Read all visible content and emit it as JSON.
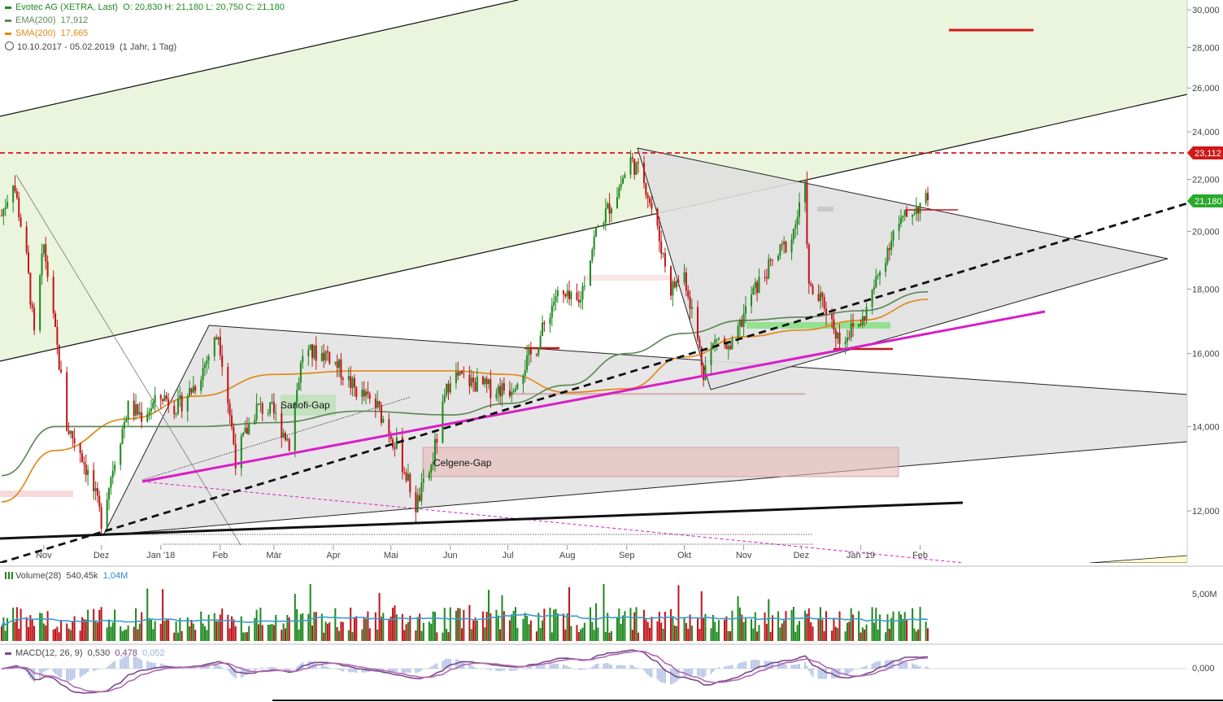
{
  "header": {
    "title": "Evotec AG (XETRA, Last)",
    "ohlc": "O: 20,830  H: 21,180  L: 20,750  C: 21,180",
    "ema_label": "EMA(200)",
    "ema_value": "17,912",
    "sma_label": "SMA(200)",
    "sma_value": "17,665",
    "range": "10.10.2017 - 05.02.2019",
    "range_detail": "(1 Jahr, 1 Tag)"
  },
  "colors": {
    "up": "#1f8a1f",
    "down": "#c0161b",
    "ema": "#5e8a5a",
    "sma": "#e08a1a",
    "magenta": "#d81ec8",
    "red_line": "#d01818",
    "channel_fill": "#ebf4dd",
    "triangle_fill": "#e0e0e0",
    "volume_avg": "#3c9bd0",
    "macd": "#7a4a8c"
  },
  "annotations": {
    "sanofi_gap": "Sanofi-Gap",
    "celgene_gap": "Celgene-Gap"
  },
  "price_tags": {
    "resistance": "23,112",
    "last": "21,180"
  },
  "volume_panel": {
    "label": "Volume(28)",
    "value1": "540,45k",
    "value2": "1,04M",
    "axis_label": "5,00M"
  },
  "macd_panel": {
    "label": "MACD(12, 26, 9)",
    "v1": "0,530",
    "v2": "0,478",
    "v3": "0,052",
    "axis_label": "0,000"
  },
  "chart_data": {
    "type": "candlestick",
    "y_axis": {
      "labels": [
        "30,000",
        "28,000",
        "26,000",
        "24,000",
        "22,000",
        "20,000",
        "18,000",
        "16,000",
        "14,000",
        "12,000"
      ]
    },
    "x_axis": {
      "labels": [
        "Nov",
        "Dez",
        "Jan '18",
        "Feb",
        "Mär",
        "Apr",
        "Mai",
        "Jun",
        "Jul",
        "Aug",
        "Sep",
        "Okt",
        "Nov",
        "Dez",
        "Jan '19",
        "Feb"
      ]
    },
    "last_close": 21.18,
    "resistance_level": 23.112,
    "anchor_closes": [
      [
        "Oct 10 2017",
        20.6
      ],
      [
        "Oct 16 2017",
        22.0
      ],
      [
        "Oct 23 2017",
        19.0
      ],
      [
        "Oct 27 2017",
        16.5
      ],
      [
        "Nov 1 2017",
        19.5
      ],
      [
        "Nov 6 2017",
        17.0
      ],
      [
        "Nov 13 2017",
        14.0
      ],
      [
        "Nov 20 2017",
        13.4
      ],
      [
        "Nov 28 2017",
        12.3
      ],
      [
        "Dec 1 2017",
        11.8
      ],
      [
        "Dec 8 2017",
        13.2
      ],
      [
        "Dec 15 2017",
        14.5
      ],
      [
        "Dec 22 2017",
        14.3
      ],
      [
        "Jan 2 2018",
        14.8
      ],
      [
        "Jan 10 2018",
        14.5
      ],
      [
        "Jan 20 2018",
        15.2
      ],
      [
        "Jan 31 2018",
        16.6
      ],
      [
        "Feb 9 2018",
        13.2
      ],
      [
        "Feb 20 2018",
        14.5
      ],
      [
        "Feb 28 2018",
        14.4
      ],
      [
        "Mar 9 2018",
        13.6
      ],
      [
        "Mar 16 2018",
        16.0
      ],
      [
        "Mar 29 2018",
        16.0
      ],
      [
        "Apr 12 2018",
        15.0
      ],
      [
        "Apr 24 2018",
        14.5
      ],
      [
        "May 4 2018",
        13.5
      ],
      [
        "May 14 2018",
        12.1
      ],
      [
        "May 22 2018",
        13.0
      ],
      [
        "Jun 1 2018",
        15.4
      ],
      [
        "Jun 11 2018",
        15.2
      ],
      [
        "Jun 22 2018",
        15.0
      ],
      [
        "Jul 2 2018",
        15.0
      ],
      [
        "Jul 16 2018",
        16.2
      ],
      [
        "Jul 26 2018",
        17.8
      ],
      [
        "Aug 7 2018",
        17.5
      ],
      [
        "Aug 16 2018",
        20.0
      ],
      [
        "Aug 27 2018",
        21.5
      ],
      [
        "Sep 3 2018",
        22.8
      ],
      [
        "Sep 10 2018",
        22.0
      ],
      [
        "Sep 17 2018",
        20.0
      ],
      [
        "Sep 24 2018",
        18.0
      ],
      [
        "Oct 1 2018",
        18.5
      ],
      [
        "Oct 11 2018",
        15.5
      ],
      [
        "Oct 18 2018",
        16.5
      ],
      [
        "Oct 25 2018",
        16.0
      ],
      [
        "Nov 5 2018",
        17.8
      ],
      [
        "Nov 15 2018",
        18.8
      ],
      [
        "Nov 26 2018",
        19.8
      ],
      [
        "Dec 3 2018",
        21.6
      ],
      [
        "Dec 5 2018",
        18.0
      ],
      [
        "Dec 13 2018",
        17.5
      ],
      [
        "Dec 21 2018",
        16.4
      ],
      [
        "Jan 2 2019",
        17.0
      ],
      [
        "Jan 10 2019",
        18.4
      ],
      [
        "Jan 18 2019",
        20.0
      ],
      [
        "Jan 28 2019",
        20.8
      ],
      [
        "Feb 5 2019",
        21.18
      ]
    ],
    "sma_200": [
      [
        "Oct 10 2017",
        12.2
      ],
      [
        "Nov 7 2017",
        13.4
      ],
      [
        "Dec 15 2017",
        14.2
      ],
      [
        "Jan 20 2018",
        14.8
      ],
      [
        "Mar 1 2018",
        15.4
      ],
      [
        "Apr 15 2018",
        15.5
      ],
      [
        "Jun 1 2018",
        15.5
      ],
      [
        "Jul 1 2018",
        15.4
      ],
      [
        "Aug 1 2018",
        14.9
      ],
      [
        "Sep 1 2018",
        15.0
      ],
      [
        "Oct 1 2018",
        15.9
      ],
      [
        "Nov 1 2018",
        16.5
      ],
      [
        "Dec 1 2018",
        16.7
      ],
      [
        "Jan 1 2019",
        17.0
      ],
      [
        "Feb 5 2019",
        17.665
      ]
    ],
    "ema_200": [
      [
        "Oct 10 2017",
        12.8
      ],
      [
        "Nov 7 2017",
        14.0
      ],
      [
        "Dec 15 2017",
        14.0
      ],
      [
        "Jan 20 2018",
        14.0
      ],
      [
        "Mar 1 2018",
        14.1
      ],
      [
        "Apr 15 2018",
        14.4
      ],
      [
        "Jun 1 2018",
        14.3
      ],
      [
        "Jul 1 2018",
        14.6
      ],
      [
        "Aug 1 2018",
        15.1
      ],
      [
        "Sep 1 2018",
        16.0
      ],
      [
        "Oct 1 2018",
        16.6
      ],
      [
        "Nov 1 2018",
        17.0
      ],
      [
        "Dec 1 2018",
        17.1
      ],
      [
        "Jan 1 2019",
        17.3
      ],
      [
        "Feb 5 2019",
        17.912
      ]
    ]
  }
}
